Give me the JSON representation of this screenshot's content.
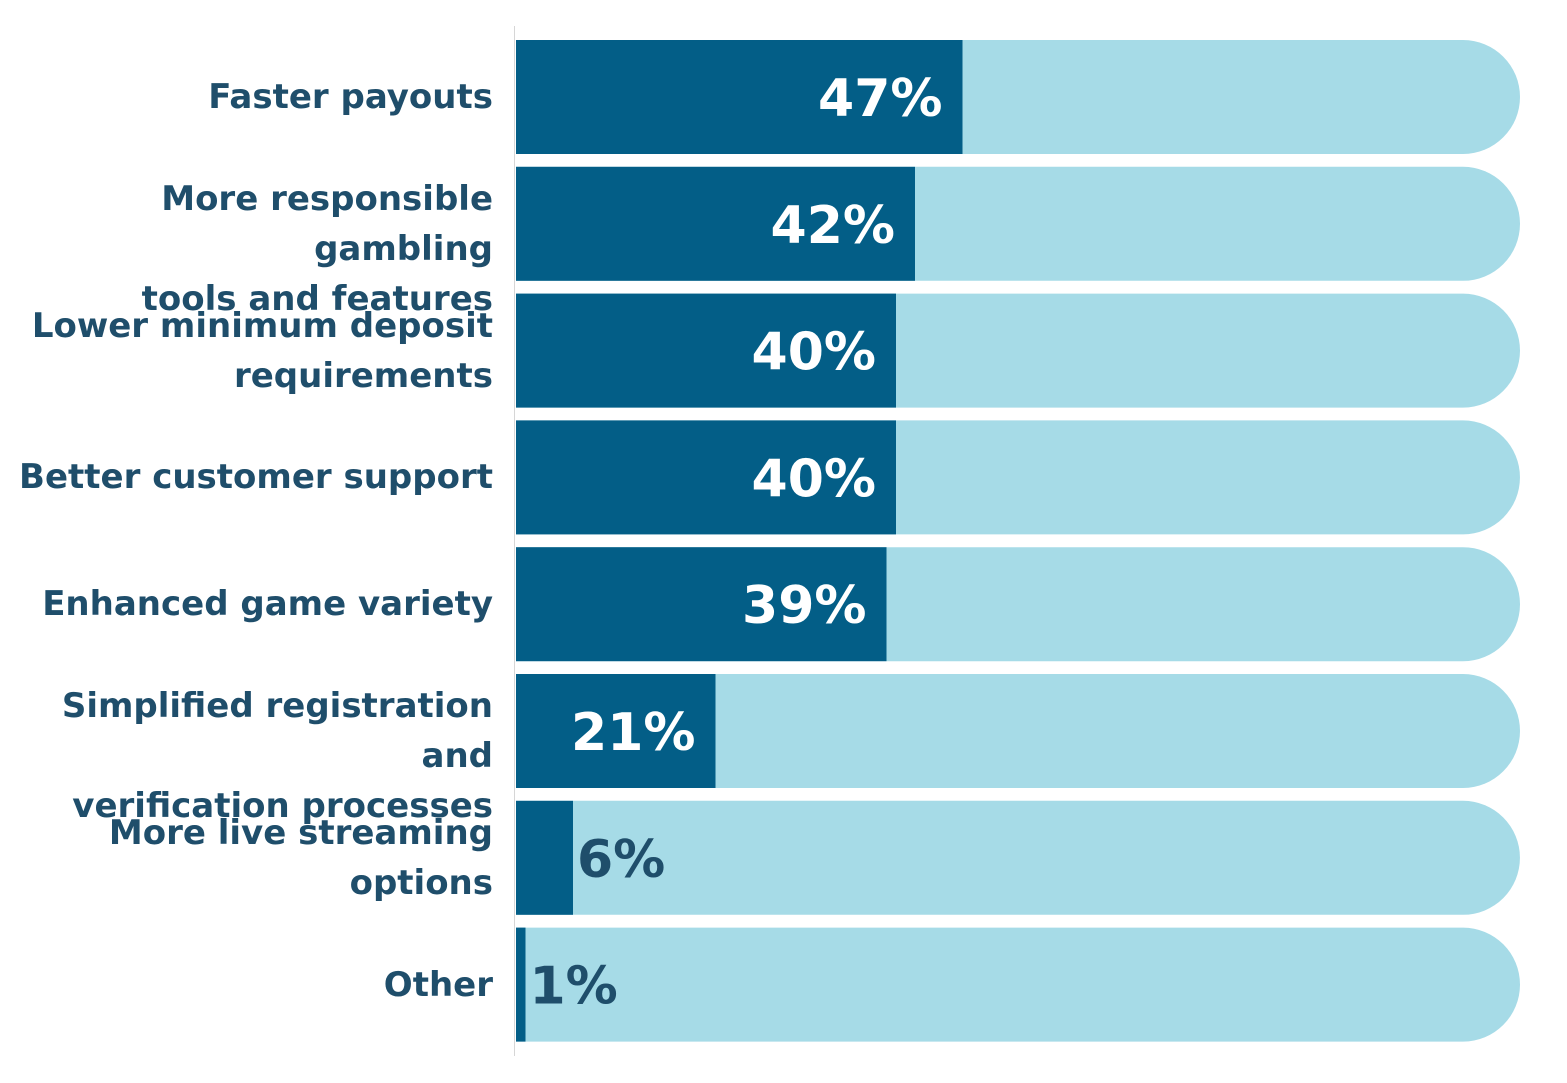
{
  "chart_data": {
    "type": "bar",
    "orientation": "horizontal",
    "title": "",
    "xlabel": "",
    "ylabel": "",
    "xlim": [
      0,
      100
    ],
    "grid": false,
    "legend": "none",
    "categories": [
      "Faster payouts",
      "More responsible gambling tools and features",
      "Lower minimum deposit requirements",
      "Better customer support",
      "Enhanced game variety",
      "Simplified registration and verification processes",
      "More live streaming options",
      "Other"
    ],
    "label_lines": [
      [
        "Faster payouts"
      ],
      [
        "More responsible gambling",
        "tools and features"
      ],
      [
        "Lower minimum deposit",
        "requirements"
      ],
      [
        "Better customer support"
      ],
      [
        "Enhanced game variety"
      ],
      [
        "Simplified registration and",
        "verification processes"
      ],
      [
        "More live streaming",
        "options"
      ],
      [
        "Other"
      ]
    ],
    "values": [
      47,
      42,
      40,
      40,
      39,
      21,
      6,
      1
    ],
    "value_labels": [
      "47%",
      "42%",
      "40%",
      "40%",
      "39%",
      "21%",
      "6%",
      "1%"
    ],
    "colors": {
      "bar": "#035e87",
      "track": "#a6dbe7",
      "label_inside": "#ffffff",
      "label_outside": "#1f4e6b",
      "category_text": "#1f4e6b"
    }
  }
}
